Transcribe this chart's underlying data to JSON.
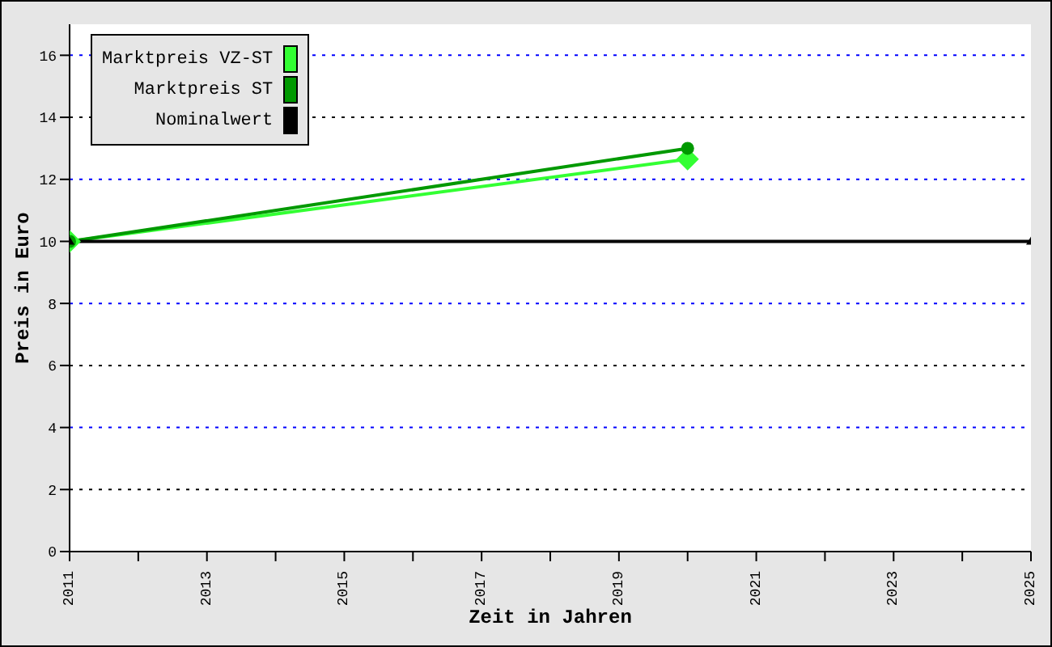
{
  "chart_data": {
    "type": "line",
    "xlabel": "Zeit in Jahren",
    "ylabel": "Preis in Euro",
    "series": [
      {
        "name": "Marktpreis VZ-ST",
        "color": "#33ff33",
        "x": [
          2011,
          2020
        ],
        "values": [
          10,
          12.65
        ],
        "marker": "diamond"
      },
      {
        "name": "Marktpreis ST",
        "color": "#009900",
        "x": [
          2011,
          2020
        ],
        "values": [
          10,
          13
        ],
        "marker": "circle"
      },
      {
        "name": "Nominalwert",
        "color": "#000000",
        "x": [
          2011,
          2025
        ],
        "values": [
          10,
          10
        ],
        "marker": "triangle"
      }
    ],
    "xlim": [
      2011,
      2025
    ],
    "xticks": [
      2011,
      {
        "value": 2012,
        "label": null
      },
      2013,
      {
        "value": 2014,
        "label": null
      },
      2015,
      {
        "value": 2016,
        "label": null
      },
      2017,
      {
        "value": 2018,
        "label": null
      },
      2019,
      {
        "value": 2020,
        "label": null
      },
      2021,
      {
        "value": 2022,
        "label": null
      },
      2023,
      {
        "value": 2024,
        "label": null
      },
      2025
    ],
    "ylim": [
      0,
      17
    ],
    "yticks": [
      0,
      2,
      4,
      6,
      8,
      10,
      12,
      14,
      16
    ],
    "grid": "y",
    "legend": "top left",
    "line_style": "solid"
  }
}
